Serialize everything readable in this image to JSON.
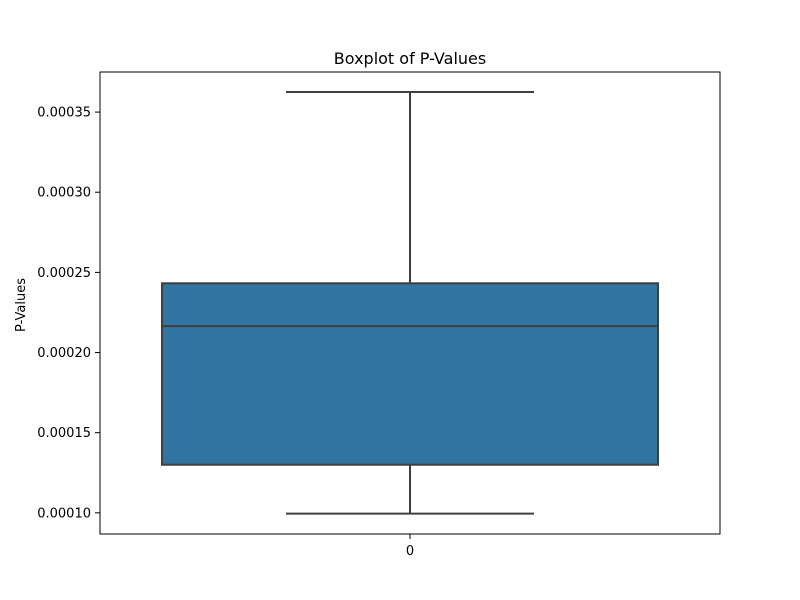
{
  "chart_data": {
    "type": "box",
    "title": "Boxplot of P-Values",
    "xlabel": "",
    "ylabel": "P-Values",
    "categories": [
      "0"
    ],
    "ylim": [
      8.68e-05,
      0.000375
    ],
    "yticks": [
      {
        "value": 0.0001,
        "label": "0.00010"
      },
      {
        "value": 0.00015,
        "label": "0.00015"
      },
      {
        "value": 0.0002,
        "label": "0.00020"
      },
      {
        "value": 0.00025,
        "label": "0.00025"
      },
      {
        "value": 0.0003,
        "label": "0.00030"
      },
      {
        "value": 0.00035,
        "label": "0.00035"
      }
    ],
    "boxes": [
      {
        "category": "0",
        "whisker_low": 9.95e-05,
        "q1": 0.00013,
        "median": 0.0002165,
        "q3": 0.0002432,
        "whisker_high": 0.0003625
      }
    ],
    "colors": {
      "box_fill": "#3274a1",
      "box_edge": "#3f3f3f",
      "axes_edge": "#000000"
    },
    "grid": false
  }
}
